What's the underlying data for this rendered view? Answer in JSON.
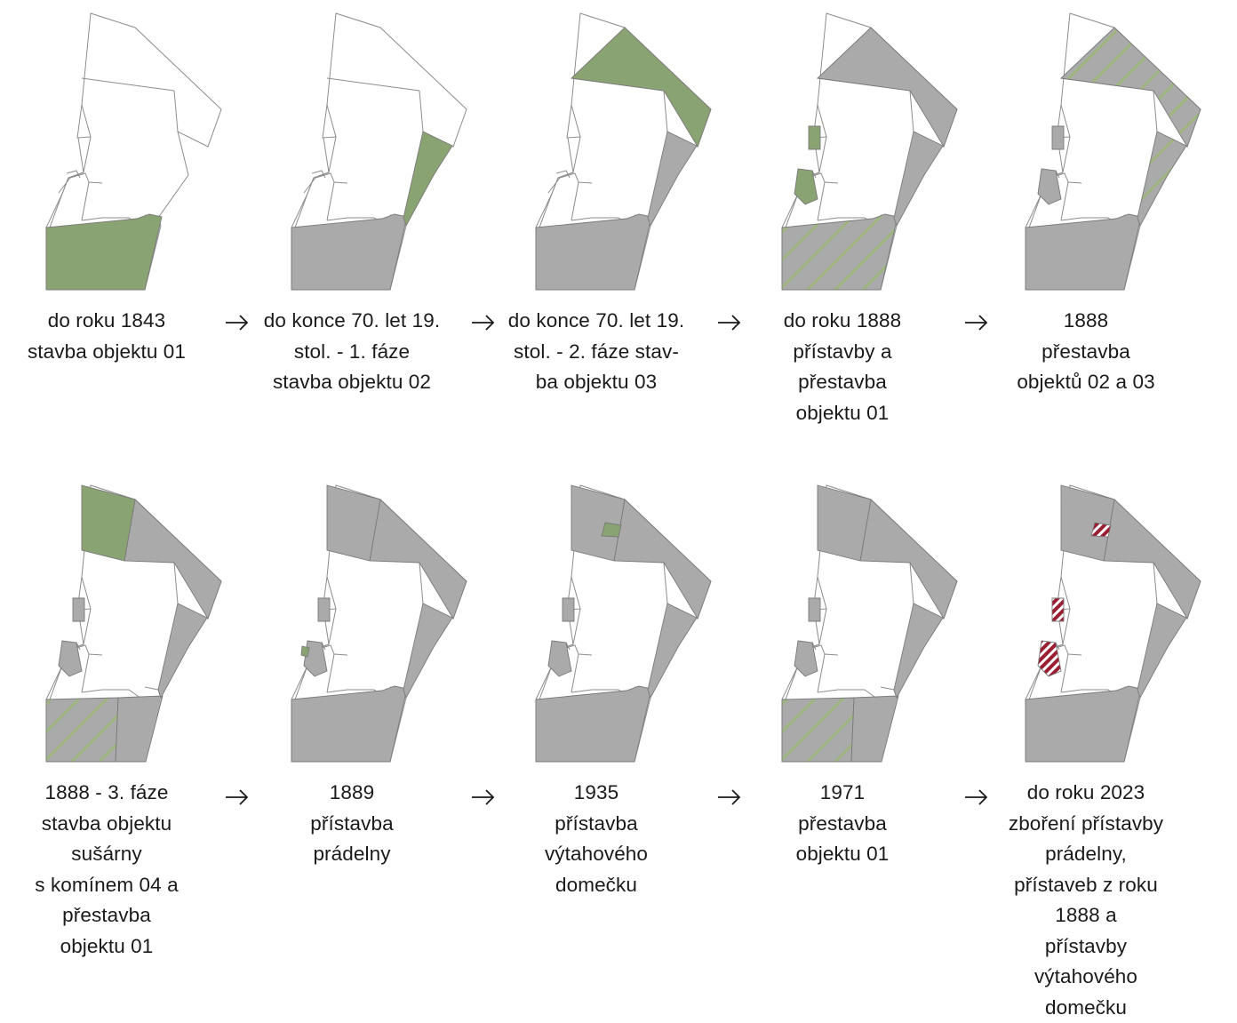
{
  "colors": {
    "new": "#8aa373",
    "existing": "#aaaaaa",
    "rebuilt_stripe": "#9db57f",
    "demolished": "#9b1f32",
    "outline": "#8c8c8c",
    "arrow": "#1a1a1a"
  },
  "arrow_icon": "right-arrow-icon",
  "stages": [
    {
      "id": "s1",
      "caption": "do roku 1843\nstavba objektu 01"
    },
    {
      "id": "s2",
      "caption": "do konce 70. let 19.\nstol. - 1. fáze\nstavba objektu 02"
    },
    {
      "id": "s3",
      "caption": "do konce 70. let 19.\nstol. - 2. fáze stav-\nba objektu 03"
    },
    {
      "id": "s4",
      "caption": "do roku 1888\npřístavby a\npřestavba\nobjektu 01"
    },
    {
      "id": "s5",
      "caption": "1888\npřestavba\nobjektů 02 a 03"
    },
    {
      "id": "s6",
      "caption": "1888 - 3. fáze\nstavba objektu\nsušárny\ns komínem 04 a\npřestavba\nobjektu 01"
    },
    {
      "id": "s7",
      "caption": "1889\npřístavba\nprádelny"
    },
    {
      "id": "s8",
      "caption": "1935\npřístavba\nvýtahového\ndomečku"
    },
    {
      "id": "s9",
      "caption": "1971\npřestavba\nobjektu 01"
    },
    {
      "id": "s10",
      "caption": "do roku 2023\nzboření přístavby\nprádelny,\npřístaveb z roku\n1888 a\npřístavby\nvýtahového\ndomečku"
    }
  ]
}
